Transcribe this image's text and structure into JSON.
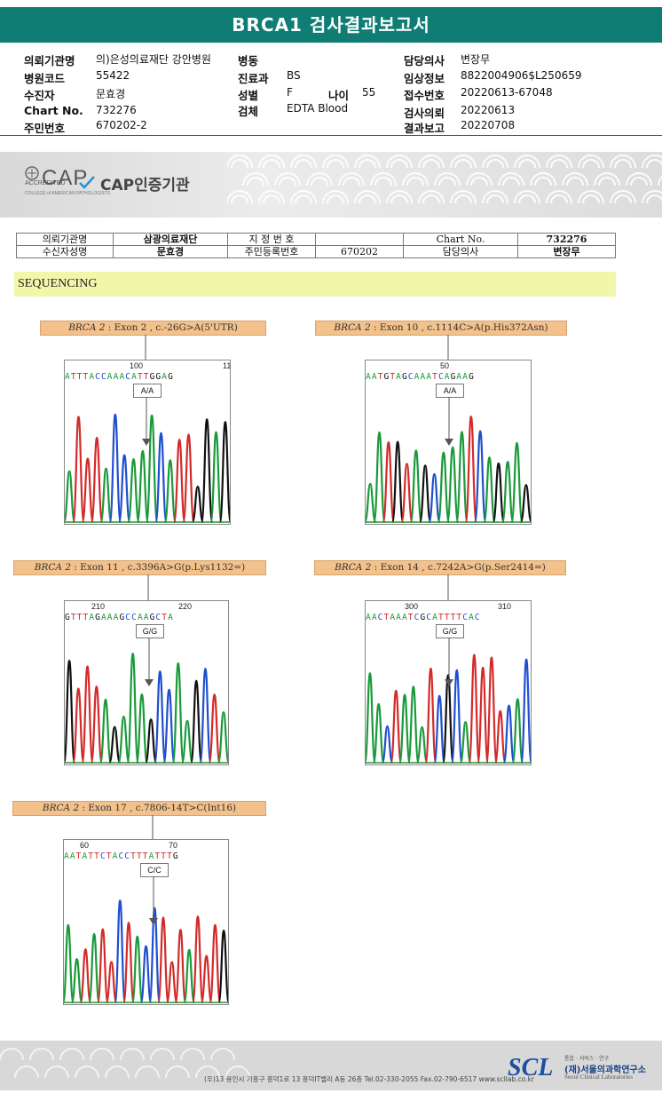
{
  "header": {
    "title": "BRCA1 검사결과보고서"
  },
  "info": {
    "hospital_label": "의뢰기관명",
    "hospital_value": "의)은성의료재단 강안병원",
    "ward_label": "병동",
    "ward_value": "",
    "doctor_label": "담당의사",
    "doctor_value": "변장무",
    "code_label": "병원코드",
    "code_value": "55422",
    "dept_label": "진료과",
    "dept_value": "BS",
    "clinical_label": "임상정보",
    "clinical_value": "8822004906$L250659",
    "patient_label": "수진자",
    "patient_value": "문효경",
    "sex_label": "성별",
    "sex_value": "F",
    "age_label": "나이",
    "age_value": "55",
    "receipt_label": "접수번호",
    "receipt_value": "20220613-67048",
    "chart_label": "Chart No.",
    "chart_value": "732276",
    "specimen_label": "검체",
    "specimen_value": "EDTA Blood",
    "request_label": "검사의뢰",
    "request_value": "20220613",
    "rrn_label": "주민번호",
    "rrn_value": "670202-2",
    "report_label": "결과보고",
    "report_value": "20220708"
  },
  "cap": {
    "logo": "CAP",
    "accredited": "ACCREDITED",
    "college": "COLLEGE of AMERICAN PATHOLOGISTS",
    "institution": "CAP인증기관"
  },
  "patient_table": {
    "r1": [
      "의뢰기관명",
      "삼광의료재단",
      "지 정 번 호",
      "",
      "Chart No.",
      "732276"
    ],
    "r2": [
      "수신자성명",
      "문효경",
      "주민등록번호",
      "670202",
      "담당의사",
      "변장무"
    ]
  },
  "section": {
    "title": "SEQUENCING"
  },
  "variants": [
    {
      "gene": "BRCA 2",
      "detail": ": Exon 2 , c.-26G>A(5'UTR)",
      "call": "A/A",
      "seq": "ATTTACCAAACATTGGAG",
      "positions": [
        "100",
        "11"
      ]
    },
    {
      "gene": "BRCA 2",
      "detail": ": Exon 10 , c.1114C>A(p.His372Asn)",
      "call": "A/A",
      "seq": "AATGTAGCAAATCAGAAG",
      "positions": [
        "50"
      ]
    },
    {
      "gene": "BRCA 2",
      "detail": ": Exon 11 , c.3396A>G(p.Lys1132=)",
      "call": "G/G",
      "seq": "GTTTAGAAAGCCAAGCTA",
      "positions": [
        "210",
        "220"
      ]
    },
    {
      "gene": "BRCA 2",
      "detail": ": Exon 14 , c.7242A>G(p.Ser2414=)",
      "call": "G/G",
      "seq": "AACTAAATCGCATTTTCAC",
      "positions": [
        "300",
        "310"
      ]
    },
    {
      "gene": "BRCA 2",
      "detail": ": Exon 17 , c.7806-14T>C(Int16)",
      "call": "C/C",
      "seq": "AATATTCTACCTTTATTTG",
      "positions": [
        "60",
        "70"
      ]
    }
  ],
  "colors": {
    "A": "#1a9a3a",
    "C": "#1f4fd0",
    "G": "#111111",
    "T": "#d42a2a",
    "header": "#0f7d74",
    "seq_band": "#f1f7a9",
    "label_bg": "#f3c18b"
  },
  "footer": {
    "address": "(우)13  용인시 기흥구 흥덕1로 13 흥덕IT밸리 A동 26층   Tel.02-330-2055   Fax.02-790-6517   www.scllab.co.kr",
    "scl": "SCL",
    "small": "통합 · 서비스 · 연구",
    "name_ko": "(재)서울의과학연구소",
    "name_en": "Seoul Clinical Laboratories"
  }
}
